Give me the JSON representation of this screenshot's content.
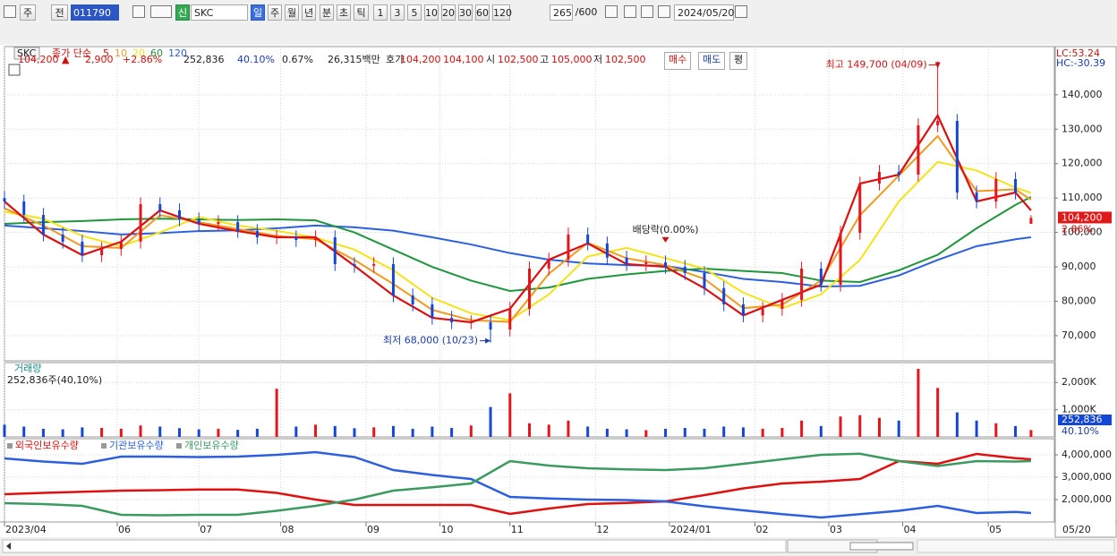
{
  "toolbar": {
    "items": [
      "주",
      "전",
      "011790",
      "신",
      "SKC",
      "일",
      "주",
      "월",
      "년",
      "분",
      "초",
      "틱",
      "1",
      "3",
      "5",
      "10",
      "20",
      "30",
      "60",
      "120",
      "265",
      "/600",
      "2024/05/20"
    ]
  },
  "info_bar": {
    "items": [
      "104,200 ▲",
      "2,900",
      "+2.86%",
      "252,836",
      "40.10%",
      "0.67%",
      "26,315백만",
      "호가",
      "104,200",
      "104,100",
      "시",
      "102,500",
      "고",
      "105,000",
      "저",
      "102,500",
      "매수",
      "매도",
      "평"
    ]
  },
  "chart_data": [
    {
      "type": "candlestick",
      "title": "SKC",
      "legend_label": "종가 단순",
      "up_color": "#e8141c",
      "down_color": "#1446d8",
      "x": [
        0,
        5,
        10,
        15,
        20,
        25,
        30,
        35,
        40,
        45,
        50,
        55,
        60,
        65,
        70,
        75,
        80,
        85,
        90,
        95,
        100,
        105,
        110,
        115,
        120,
        125,
        130,
        135,
        140,
        145,
        150,
        155,
        160,
        165,
        170,
        175,
        180,
        185,
        190,
        195,
        200,
        205,
        210,
        215,
        220,
        225,
        230,
        235,
        240,
        245,
        250,
        255,
        260,
        264
      ],
      "open": [
        110000,
        109000,
        105100,
        99400,
        97300,
        93400,
        95200,
        97300,
        108200,
        106400,
        103800,
        102500,
        103000,
        100400,
        98600,
        98600,
        97800,
        98600,
        90800,
        90300,
        90800,
        81700,
        79100,
        75200,
        73900,
        73900,
        71800,
        77800,
        89500,
        92100,
        99400,
        96800,
        92700,
        90800,
        91300,
        90000,
        88200,
        83800,
        79100,
        75900,
        77800,
        80400,
        89500,
        84800,
        99900,
        114200,
        117600,
        116800,
        131100,
        132400,
        111600,
        109000,
        115500,
        102500
      ],
      "high": [
        112000,
        111000,
        107100,
        101400,
        99300,
        97200,
        99300,
        110200,
        110200,
        108400,
        105800,
        105000,
        105000,
        102400,
        100600,
        100600,
        100600,
        100600,
        92800,
        92800,
        92800,
        83700,
        81100,
        77200,
        75900,
        75900,
        79800,
        91500,
        94100,
        101400,
        101400,
        98800,
        94700,
        93300,
        93300,
        92000,
        90200,
        85800,
        81100,
        79800,
        82400,
        91500,
        91500,
        101900,
        116200,
        119600,
        119600,
        133100,
        149700,
        134400,
        113600,
        117500,
        117500,
        105000
      ],
      "low": [
        107000,
        103100,
        97400,
        95300,
        91400,
        91400,
        93200,
        95300,
        104400,
        101800,
        100500,
        100500,
        98400,
        96600,
        96600,
        95800,
        95800,
        88800,
        88300,
        88300,
        79700,
        77100,
        73200,
        71900,
        71900,
        68000,
        69800,
        75800,
        87500,
        90100,
        94800,
        90700,
        88800,
        88800,
        88000,
        86200,
        81800,
        77100,
        73900,
        73900,
        75800,
        78400,
        82800,
        82800,
        97900,
        112200,
        114800,
        114800,
        129100,
        109600,
        107000,
        107000,
        109600,
        102500
      ],
      "close": [
        109000,
        105100,
        99400,
        97300,
        93400,
        95200,
        97300,
        108200,
        106400,
        103800,
        102500,
        103000,
        100400,
        98600,
        98600,
        97800,
        98600,
        90800,
        90300,
        90800,
        81700,
        79100,
        75200,
        73900,
        73900,
        71800,
        77800,
        89500,
        92100,
        99400,
        96800,
        92700,
        90800,
        91300,
        90000,
        88200,
        83800,
        79100,
        75900,
        77800,
        80400,
        89500,
        84800,
        99900,
        114200,
        117600,
        116800,
        131100,
        132400,
        111600,
        109000,
        115500,
        111600,
        104200
      ],
      "series": [
        {
          "name": "5",
          "color": "#dc1010",
          "x": [
            0,
            10,
            20,
            30,
            40,
            50,
            60,
            70,
            80,
            90,
            100,
            110,
            120,
            130,
            140,
            150,
            160,
            170,
            180,
            190,
            200,
            210,
            220,
            230,
            240,
            250,
            260,
            264
          ],
          "values": [
            109000,
            99400,
            93400,
            97300,
            106400,
            102500,
            100400,
            98600,
            98600,
            90300,
            81700,
            75200,
            73900,
            77800,
            92100,
            96800,
            90800,
            90000,
            83800,
            75900,
            80400,
            84800,
            114200,
            116800,
            134000,
            109000,
            111600,
            106400
          ]
        },
        {
          "name": "10",
          "color": "#f09a20",
          "x": [
            0,
            10,
            20,
            30,
            40,
            50,
            60,
            70,
            80,
            90,
            100,
            110,
            120,
            130,
            140,
            150,
            160,
            170,
            180,
            190,
            200,
            210,
            220,
            230,
            240,
            250,
            260,
            264
          ],
          "values": [
            107000,
            102000,
            96000,
            95500,
            105000,
            103000,
            101000,
            99000,
            98000,
            92000,
            85000,
            77500,
            74500,
            74000,
            88000,
            97000,
            92500,
            90500,
            86500,
            78000,
            79000,
            86000,
            105000,
            116500,
            128000,
            112000,
            112500,
            109500
          ]
        },
        {
          "name": "20",
          "color": "#f5e31a",
          "x": [
            0,
            10,
            20,
            30,
            40,
            50,
            60,
            70,
            80,
            90,
            100,
            110,
            120,
            130,
            140,
            150,
            160,
            170,
            180,
            190,
            200,
            210,
            220,
            230,
            240,
            250,
            260,
            264
          ],
          "values": [
            106000,
            104000,
            99000,
            96000,
            100000,
            104500,
            102000,
            100500,
            98500,
            95000,
            89000,
            81000,
            76500,
            74500,
            82000,
            93000,
            95500,
            92500,
            89500,
            82500,
            78000,
            82000,
            92000,
            109000,
            120500,
            118000,
            113000,
            111500
          ]
        },
        {
          "name": "60",
          "color": "#20963c",
          "x": [
            0,
            10,
            20,
            30,
            40,
            50,
            60,
            70,
            80,
            90,
            100,
            110,
            120,
            130,
            140,
            150,
            160,
            170,
            180,
            190,
            200,
            210,
            220,
            230,
            240,
            250,
            260,
            264
          ],
          "values": [
            102500,
            103000,
            103300,
            103800,
            104000,
            103800,
            103600,
            103800,
            103500,
            100000,
            95000,
            90000,
            86000,
            83000,
            84000,
            86500,
            87800,
            88800,
            89500,
            88800,
            88200,
            86000,
            85600,
            89000,
            93500,
            101200,
            108000,
            110300
          ]
        },
        {
          "name": "120",
          "color": "#2c5fe0",
          "x": [
            0,
            10,
            20,
            30,
            40,
            50,
            60,
            70,
            80,
            90,
            100,
            110,
            120,
            130,
            140,
            150,
            160,
            170,
            180,
            190,
            200,
            210,
            220,
            230,
            240,
            250,
            260,
            264
          ],
          "values": [
            102000,
            101200,
            100400,
            99400,
            99800,
            100400,
            100600,
            101200,
            102000,
            101500,
            100500,
            98600,
            96500,
            94000,
            92100,
            91000,
            90500,
            90300,
            88500,
            86500,
            85600,
            84300,
            84500,
            87500,
            92000,
            96000,
            98000,
            98600
          ]
        }
      ],
      "annotations": [
        {
          "text": "최고 149,700 (04/09)",
          "x": 240,
          "y": 149700,
          "color": "#d01010"
        },
        {
          "text": "최저 68,000 (10/23)",
          "x": 125,
          "y": 68000,
          "color": "#1a3caa"
        },
        {
          "text": "배당락(0.00%)",
          "x": 170,
          "y": 95000,
          "color": "#222222"
        }
      ],
      "lc_label": "LC:53.24",
      "hc_label": "HC:-30.39",
      "last_label": "104,200",
      "last_change": "2.86%",
      "xlim": [
        0,
        270
      ],
      "ylim": [
        62700,
        154000
      ],
      "yticks": [
        {
          "value": 70000,
          "label": "70,000"
        },
        {
          "value": 80000,
          "label": "80,000"
        },
        {
          "value": 90000,
          "label": "90,000"
        },
        {
          "value": 100000,
          "label": "100,000"
        },
        {
          "value": 110000,
          "label": "110,000"
        },
        {
          "value": 120000,
          "label": "120,000"
        },
        {
          "value": 130000,
          "label": "130,000"
        },
        {
          "value": 140000,
          "label": "140,000"
        }
      ],
      "grid": true
    },
    {
      "type": "bar",
      "title": "거래량",
      "subtitle": "252,836주(40,10%)",
      "x": [
        0,
        5,
        10,
        15,
        20,
        25,
        30,
        35,
        40,
        45,
        50,
        55,
        60,
        65,
        70,
        75,
        80,
        85,
        90,
        95,
        100,
        105,
        110,
        115,
        120,
        125,
        130,
        135,
        140,
        145,
        150,
        155,
        160,
        165,
        170,
        175,
        180,
        185,
        190,
        195,
        200,
        205,
        210,
        215,
        220,
        225,
        230,
        235,
        240,
        245,
        250,
        255,
        260,
        264
      ],
      "values": [
        450000,
        380000,
        300000,
        280000,
        350000,
        330000,
        300000,
        420000,
        380000,
        320000,
        280000,
        300000,
        260000,
        300000,
        1770000,
        380000,
        450000,
        400000,
        320000,
        350000,
        400000,
        300000,
        380000,
        330000,
        420000,
        1100000,
        1600000,
        500000,
        450000,
        600000,
        380000,
        300000,
        280000,
        250000,
        300000,
        330000,
        300000,
        380000,
        350000,
        300000,
        330000,
        600000,
        400000,
        750000,
        800000,
        700000,
        600000,
        2500000,
        1800000,
        900000,
        600000,
        500000,
        400000,
        252836
      ],
      "last_label": "252,836",
      "last_pct": "40.10%",
      "xlim": [
        0,
        270
      ],
      "ylim": [
        0,
        2730000
      ],
      "yticks": [
        {
          "value": 1000000,
          "label": "1,000K"
        },
        {
          "value": 2000000,
          "label": "2,000K"
        }
      ],
      "grid": true
    },
    {
      "type": "line",
      "series": [
        {
          "name": "외국인보유수량",
          "color": "#e01010",
          "x": [
            0,
            10,
            20,
            30,
            40,
            50,
            60,
            70,
            80,
            90,
            100,
            110,
            120,
            130,
            140,
            150,
            160,
            170,
            180,
            190,
            200,
            210,
            220,
            230,
            240,
            250,
            260,
            264
          ],
          "values": [
            2240000,
            2300000,
            2350000,
            2400000,
            2420000,
            2450000,
            2450000,
            2300000,
            2000000,
            1760000,
            1760000,
            1760000,
            1760000,
            1360000,
            1600000,
            1800000,
            1850000,
            1920000,
            2200000,
            2500000,
            2720000,
            2800000,
            2920000,
            3720000,
            3600000,
            4040000,
            3850000,
            3800000
          ]
        },
        {
          "name": "기관보유수량",
          "color": "#2c5fe0",
          "x": [
            0,
            10,
            20,
            30,
            40,
            50,
            60,
            70,
            80,
            90,
            100,
            110,
            120,
            130,
            140,
            150,
            160,
            170,
            180,
            190,
            200,
            210,
            220,
            230,
            240,
            250,
            260,
            264
          ],
          "values": [
            3840000,
            3700000,
            3600000,
            3920000,
            3920000,
            3900000,
            3920000,
            4000000,
            4120000,
            3900000,
            3320000,
            3100000,
            2920000,
            2120000,
            2050000,
            2000000,
            1980000,
            1920000,
            1700000,
            1520000,
            1350000,
            1200000,
            1350000,
            1500000,
            1720000,
            1400000,
            1450000,
            1400000
          ]
        },
        {
          "name": "개인보유수량",
          "color": "#3a9a60",
          "x": [
            0,
            10,
            20,
            30,
            40,
            50,
            60,
            70,
            80,
            90,
            100,
            110,
            120,
            130,
            140,
            150,
            160,
            170,
            180,
            190,
            200,
            210,
            220,
            230,
            240,
            250,
            260,
            264
          ],
          "values": [
            1840000,
            1800000,
            1720000,
            1320000,
            1300000,
            1320000,
            1320000,
            1500000,
            1720000,
            2000000,
            2400000,
            2550000,
            2720000,
            3720000,
            3520000,
            3400000,
            3350000,
            3320000,
            3400000,
            3600000,
            3800000,
            4000000,
            4050000,
            3720000,
            3500000,
            3720000,
            3700000,
            3720000
          ]
        }
      ],
      "xlim": [
        0,
        270
      ],
      "ylim": [
        1000000,
        4720000
      ],
      "yticks": [
        {
          "value": 2000000,
          "label": "2,000,000"
        },
        {
          "value": 3000000,
          "label": "3,000,000"
        },
        {
          "value": 4000000,
          "label": "4,000,000"
        }
      ],
      "xticks": [
        {
          "value": 0,
          "label": "2023/04"
        },
        {
          "value": 29,
          "label": "06"
        },
        {
          "value": 50,
          "label": "07"
        },
        {
          "value": 71,
          "label": "08"
        },
        {
          "value": 93,
          "label": "09"
        },
        {
          "value": 112,
          "label": "10"
        },
        {
          "value": 130,
          "label": "11"
        },
        {
          "value": 152,
          "label": "12"
        },
        {
          "value": 171,
          "label": "2024/01"
        },
        {
          "value": 193,
          "label": "02"
        },
        {
          "value": 212,
          "label": "03"
        },
        {
          "value": 231,
          "label": "04"
        },
        {
          "value": 253,
          "label": "05"
        }
      ],
      "last_date": "05/20",
      "grid": true
    }
  ]
}
